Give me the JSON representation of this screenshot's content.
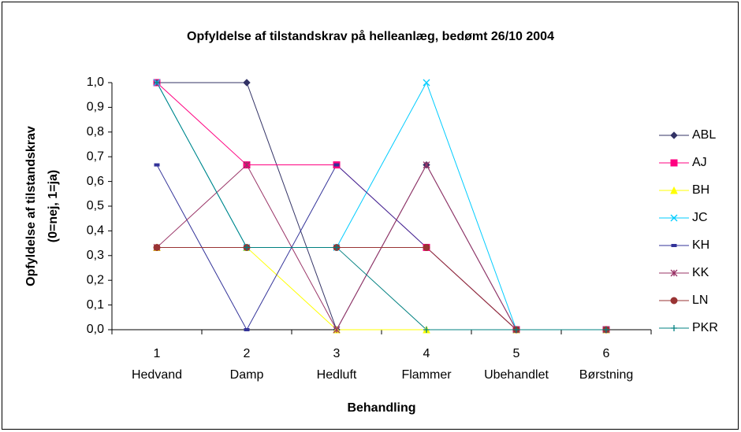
{
  "chart_data": {
    "type": "line",
    "title": "Opfyldelse af tilstandskrav på helleanlæg, bedømt 26/10 2004",
    "ylabel_lines": [
      "Opfyldelse af tilstandskrav",
      "(0=nej, 1=ja)"
    ],
    "xlabel": "Behandling",
    "categories": [
      "1",
      "2",
      "3",
      "4",
      "5",
      "6"
    ],
    "category_names": [
      "Hedvand",
      "Damp",
      "Hedluft",
      "Flammer",
      "Ubehandlet",
      "Børstning"
    ],
    "ylim": [
      0,
      1
    ],
    "yticks": [
      {
        "value": 0,
        "label": "0,0"
      },
      {
        "value": 0.1,
        "label": "0,1"
      },
      {
        "value": 0.2,
        "label": "0,2"
      },
      {
        "value": 0.3,
        "label": "0,3"
      },
      {
        "value": 0.4,
        "label": "0,4"
      },
      {
        "value": 0.5,
        "label": "0,5"
      },
      {
        "value": 0.6,
        "label": "0,6"
      },
      {
        "value": 0.7,
        "label": "0,7"
      },
      {
        "value": 0.8,
        "label": "0,8"
      },
      {
        "value": 0.9,
        "label": "0,9"
      },
      {
        "value": 1,
        "label": "1,0"
      }
    ],
    "legend": "right",
    "series": [
      {
        "name": "ABL",
        "color": "#333366",
        "marker": "diamond",
        "values": [
          1,
          1,
          0,
          0.667,
          0,
          0
        ]
      },
      {
        "name": "AJ",
        "color": "#ff0080",
        "marker": "square",
        "values": [
          1,
          0.667,
          0.667,
          0.333,
          0,
          0
        ]
      },
      {
        "name": "BH",
        "color": "#ffff00",
        "marker": "triangle",
        "values": [
          0.333,
          0.333,
          0,
          0,
          0,
          0
        ]
      },
      {
        "name": "JC",
        "color": "#00ccff",
        "marker": "x",
        "values": [
          1,
          0.333,
          0.333,
          1,
          0,
          0
        ]
      },
      {
        "name": "KH",
        "color": "#333399",
        "marker": "dash",
        "values": [
          0.667,
          0,
          0.667,
          0.333,
          0,
          0
        ]
      },
      {
        "name": "KK",
        "color": "#993366",
        "marker": "star",
        "values": [
          0.333,
          0.667,
          0,
          0.667,
          0,
          0
        ]
      },
      {
        "name": "LN",
        "color": "#993333",
        "marker": "circle",
        "values": [
          0.333,
          0.333,
          0.333,
          0.333,
          0,
          0
        ]
      },
      {
        "name": "PKR",
        "color": "#008080",
        "marker": "plus",
        "values": [
          1,
          0.333,
          0.333,
          0,
          0,
          0
        ]
      }
    ]
  }
}
